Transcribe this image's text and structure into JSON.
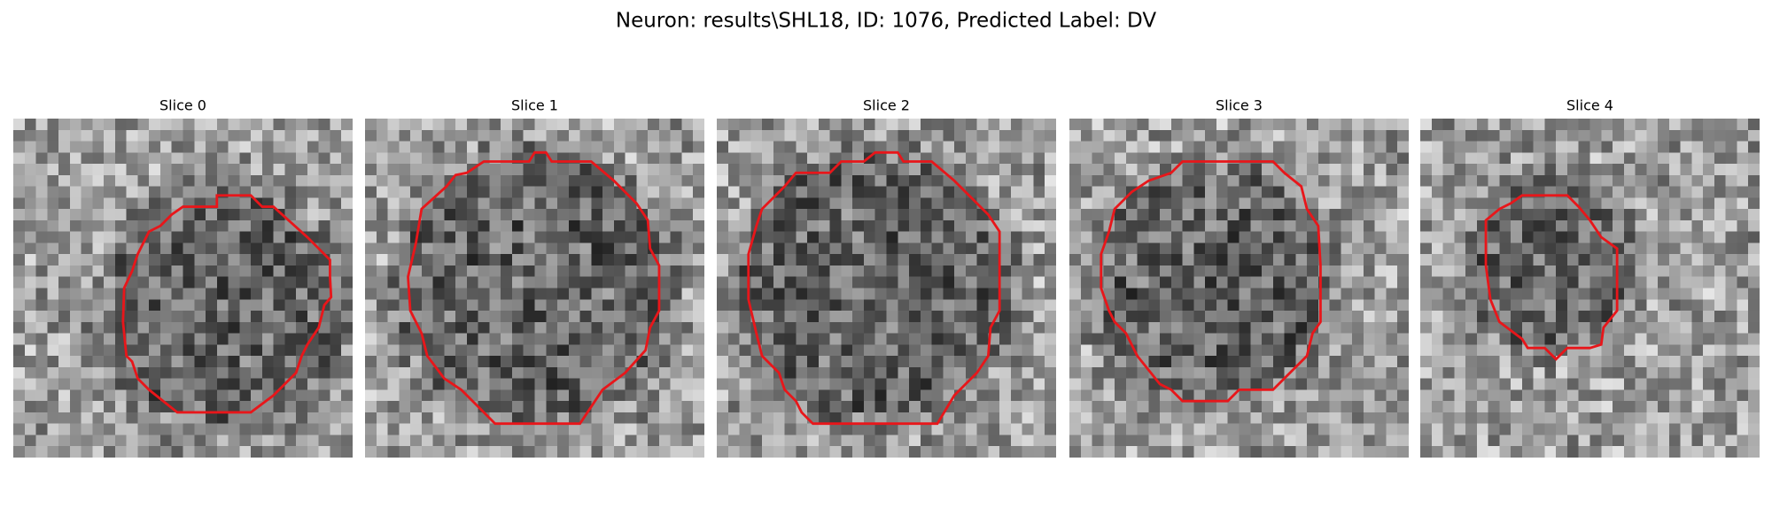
{
  "title": "Neuron: results\\SHL18, ID: 1076, Predicted Label: DV",
  "panels": [
    {
      "title": "Slice 0"
    },
    {
      "title": "Slice 1"
    },
    {
      "title": "Slice 2"
    },
    {
      "title": "Slice 3"
    },
    {
      "title": "Slice 4"
    }
  ]
}
